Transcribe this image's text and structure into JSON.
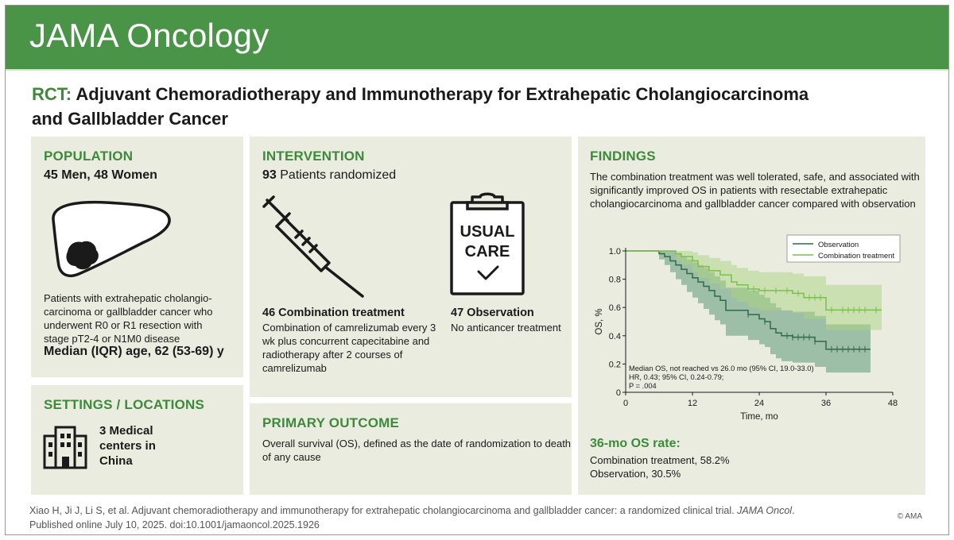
{
  "header": {
    "journal": "JAMA Oncology"
  },
  "title": {
    "prefix": "RCT:",
    "line1": "Adjuvant Chemoradiotherapy and Immunotherapy for Extrahepatic Cholangiocarcinoma",
    "line2": "and Gallbladder Cancer"
  },
  "population": {
    "heading": "POPULATION",
    "sex": "45 Men, 48 Women",
    "description": [
      "Patients with extrahepatic cholangio-",
      "carcinoma or gallbladder cancer who",
      "underwent R0 or R1 resection with",
      "stage pT2-4 or N1M0 disease"
    ],
    "age": "Median (IQR) age, 62 (53-69) y",
    "icon": "liver-tumor-icon"
  },
  "settings": {
    "heading": "SETTINGS / LOCATIONS",
    "centers": [
      "3 Medical",
      "centers in",
      "China"
    ],
    "icon": "building-icon"
  },
  "intervention": {
    "heading": "INTERVENTION",
    "randomized_count": "93",
    "randomized_label": "Patients randomized",
    "combo_count": "46",
    "combo_label": "Combination treatment",
    "combo_desc": [
      "Combination of camrelizumab every 3",
      "wk plus concurrent capecitabine and",
      "radiotherapy after 2 courses of",
      "camrelizumab"
    ],
    "obs_count": "47",
    "obs_label": "Observation",
    "obs_desc": "No anticancer treatment",
    "clipboard_line1": "USUAL",
    "clipboard_line2": "CARE",
    "syringe_icon": "syringe-icon",
    "clipboard_icon": "clipboard-icon"
  },
  "outcome": {
    "heading": "PRIMARY OUTCOME",
    "desc": [
      "Overall survival (OS), defined as the date of randomization to death",
      "of any cause"
    ]
  },
  "findings": {
    "heading": "FINDINGS",
    "desc": [
      "The combination treatment was well tolerated, safe, and associated with",
      "significantly improved OS in patients with resectable extrahepatic",
      "cholangiocarcinoma and gallbladder cancer compared with observation"
    ],
    "rate_heading": "36-mo OS rate:",
    "rate_combo": "Combination treatment, 58.2%",
    "rate_obs": "Observation, 30.5%"
  },
  "chart_data": {
    "type": "line",
    "subtype": "kaplan-meier",
    "xlabel": "Time, mo",
    "ylabel": "OS, %",
    "xlim": [
      0,
      48
    ],
    "ylim": [
      0,
      1.0
    ],
    "xticks": [
      0,
      12,
      24,
      36,
      48
    ],
    "yticks": [
      0,
      0.2,
      0.4,
      0.6,
      0.8,
      1.0
    ],
    "ytick_labels": [
      "0",
      "0.2",
      "0.4",
      "0.6",
      "0.8",
      "1.0"
    ],
    "legend_position": "top-right",
    "annotation": [
      "Median OS, not reached vs 26.0 mo (95% CI, 19.0-33.0)",
      "HR, 0.43; 95% CI, 0.24-0.79;",
      "P = .004"
    ],
    "series": [
      {
        "name": "Observation",
        "color": "#2e6b4a",
        "band_color": "#5f9a78",
        "x": [
          0,
          5,
          6,
          7,
          8,
          9,
          10,
          11,
          12,
          13,
          14,
          15,
          16,
          17,
          18,
          20,
          22,
          24,
          25,
          26,
          27,
          28,
          30,
          32,
          34,
          36,
          40,
          44
        ],
        "y": [
          1.0,
          1.0,
          0.98,
          0.96,
          0.93,
          0.9,
          0.87,
          0.84,
          0.81,
          0.78,
          0.75,
          0.72,
          0.68,
          0.65,
          0.58,
          0.58,
          0.55,
          0.52,
          0.5,
          0.45,
          0.42,
          0.4,
          0.39,
          0.39,
          0.36,
          0.305,
          0.305,
          0.305
        ],
        "lower": [
          1.0,
          1.0,
          0.94,
          0.9,
          0.85,
          0.8,
          0.76,
          0.71,
          0.67,
          0.63,
          0.59,
          0.55,
          0.51,
          0.48,
          0.4,
          0.4,
          0.37,
          0.34,
          0.32,
          0.27,
          0.24,
          0.22,
          0.21,
          0.21,
          0.18,
          0.14,
          0.14,
          0.14
        ],
        "upper": [
          1.0,
          1.0,
          1.0,
          1.0,
          1.0,
          0.98,
          0.96,
          0.94,
          0.92,
          0.9,
          0.88,
          0.85,
          0.82,
          0.79,
          0.74,
          0.74,
          0.72,
          0.69,
          0.67,
          0.63,
          0.6,
          0.58,
          0.57,
          0.57,
          0.54,
          0.48,
          0.48,
          0.48
        ],
        "censor_x": [
          22,
          25,
          29,
          30,
          31,
          32,
          33,
          34,
          37,
          38,
          39,
          40,
          41,
          42,
          43
        ]
      },
      {
        "name": "Combination treatment",
        "color": "#7cbe4b",
        "band_color": "#a9d37f",
        "x": [
          0,
          8,
          9,
          10,
          12,
          13,
          15,
          17,
          19,
          20,
          22,
          24,
          26,
          28,
          30,
          32,
          34,
          36,
          40,
          46
        ],
        "y": [
          1.0,
          1.0,
          0.98,
          0.96,
          0.93,
          0.89,
          0.86,
          0.83,
          0.78,
          0.76,
          0.73,
          0.72,
          0.72,
          0.72,
          0.7,
          0.67,
          0.67,
          0.582,
          0.582,
          0.582
        ],
        "lower": [
          1.0,
          1.0,
          0.93,
          0.9,
          0.85,
          0.81,
          0.77,
          0.73,
          0.67,
          0.64,
          0.6,
          0.58,
          0.58,
          0.58,
          0.56,
          0.52,
          0.52,
          0.44,
          0.44,
          0.44
        ],
        "upper": [
          1.0,
          1.0,
          1.0,
          1.0,
          0.99,
          0.97,
          0.95,
          0.93,
          0.9,
          0.88,
          0.86,
          0.85,
          0.85,
          0.85,
          0.84,
          0.82,
          0.82,
          0.76,
          0.76,
          0.76
        ],
        "censor_x": [
          23,
          25,
          27,
          29,
          31,
          33,
          34,
          35,
          37,
          39,
          40,
          41,
          42,
          43,
          45
        ]
      }
    ]
  },
  "footer": {
    "citation_pre": "Xiao H, Ji J, Li S, et al. Adjuvant chemoradiotherapy and immunotherapy for extrahepatic cholangiocarcinoma and gallbladder cancer: a randomized clinical trial.",
    "citation_journal": "JAMA Oncol",
    "citation_post": ".",
    "published": "Published online July 10, 2025. doi:10.1001/jamaoncol.2025.1926",
    "copyright": "© AMA"
  }
}
